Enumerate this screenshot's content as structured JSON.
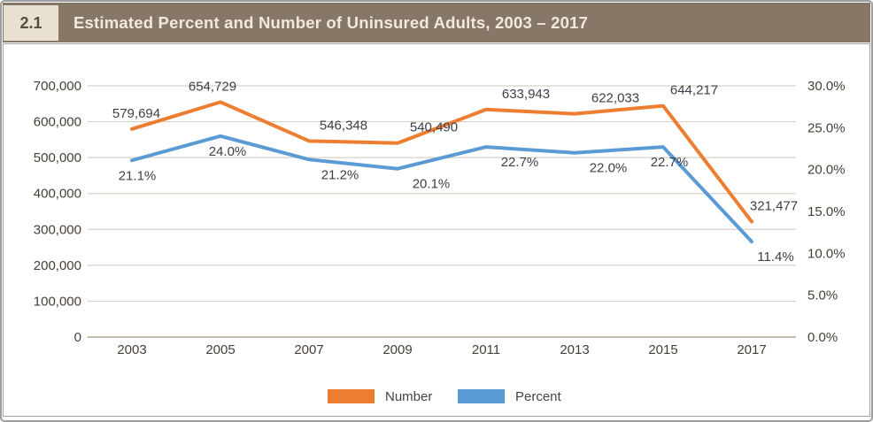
{
  "header": {
    "figure_number": "2.1",
    "title": "Estimated Percent and Number of Uninsured Adults, 2003 – 2017"
  },
  "colors": {
    "header_bg": "#867767",
    "badge_bg": "#e8e1d1",
    "badge_text": "#564d3f",
    "title_text": "#f0e9dc",
    "orange": "#ED7D31",
    "blue": "#5B9BD5",
    "gridline": "#d9d1c6",
    "axis_line": "#c6bcae",
    "tick_text": "#453f36",
    "data_label_text": "#3d4047",
    "legend_text": "#3f434b",
    "chart_border": "#aaa296",
    "outer_border": "#9e9e9e"
  },
  "chart_data": {
    "type": "line",
    "title": "Estimated Percent and Number of Uninsured Adults, 2003 – 2017",
    "categories": [
      "2003",
      "2005",
      "2007",
      "2009",
      "2011",
      "2013",
      "2015",
      "2017"
    ],
    "series": [
      {
        "name": "Number",
        "axis": "left",
        "color": "#ED7D31",
        "values": [
          579694,
          654729,
          546348,
          540490,
          633943,
          622033,
          644217,
          321477
        ],
        "labels": [
          "579,694",
          "654,729",
          "546,348",
          "540,490",
          "633,943",
          "622,033",
          "644,217",
          "321,477"
        ]
      },
      {
        "name": "Percent",
        "axis": "right",
        "color": "#5B9BD5",
        "values": [
          21.1,
          24.0,
          21.2,
          20.1,
          22.7,
          22.0,
          22.7,
          11.4
        ],
        "labels": [
          "21.1%",
          "24.0%",
          "21.2%",
          "20.1%",
          "22.7%",
          "22.0%",
          "22.7%",
          "11.4%"
        ]
      }
    ],
    "left_axis": {
      "min": 0,
      "max": 700000,
      "step": 100000,
      "tick_labels": [
        "0",
        "100,000",
        "200,000",
        "300,000",
        "400,000",
        "500,000",
        "600,000",
        "700,000"
      ]
    },
    "right_axis": {
      "min": 0,
      "max": 30,
      "step": 5,
      "tick_labels": [
        "0.0%",
        "5.0%",
        "10.0%",
        "15.0%",
        "20.0%",
        "25.0%",
        "30.0%"
      ]
    },
    "grid": true,
    "legend_position": "bottom",
    "legend": [
      "Number",
      "Percent"
    ]
  }
}
